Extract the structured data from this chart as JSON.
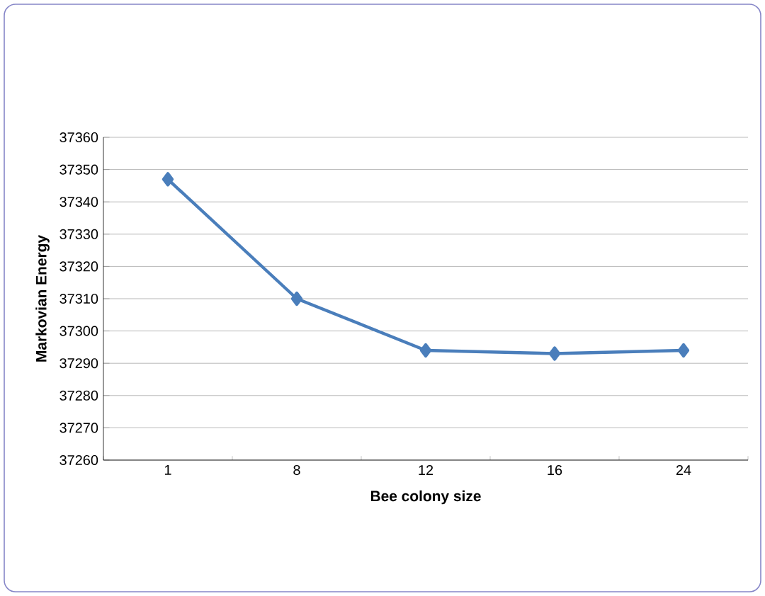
{
  "chart_data": {
    "type": "line",
    "xlabel": "Bee colony size",
    "ylabel": "Markovian  Energy",
    "categories": [
      "1",
      "8",
      "12",
      "16",
      "24"
    ],
    "values": [
      37347,
      37310,
      37294,
      37293,
      37294
    ],
    "color": "#4a7ebb",
    "ylim": [
      37260,
      37360
    ],
    "yticks": [
      37260,
      37270,
      37280,
      37290,
      37300,
      37310,
      37320,
      37330,
      37340,
      37350,
      37360
    ],
    "grid": "y",
    "marker": "diamond",
    "line_style": "solid"
  }
}
